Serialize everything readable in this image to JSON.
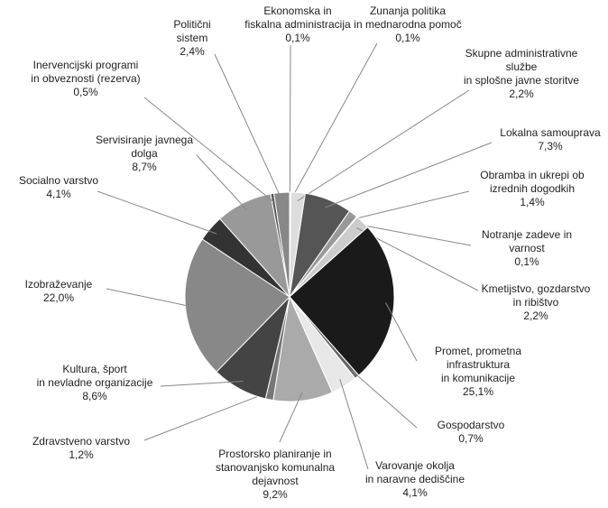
{
  "chart_data": {
    "type": "pie",
    "categories": [
      "Ekonomska in\nfiskalna administracija",
      "Zunanja politika\nin mednarodna pomoč",
      "Skupne administrativne\nslužbe\nin splošne javne storitve",
      "Lokalna samouprava",
      "Obramba in ukrepi ob\nizrednih dogodkih",
      "Notranje zadeve in\nvarnost",
      "Kmetijstvo, gozdarstvo\nin ribištvo",
      "Promet, prometna\ninfrastruktura\nin komunikacije",
      "Gospodarstvo",
      "Varovanje okolja\nin naravne dediščine",
      "Prostorsko planiranje in\nstanovanjsko komunalna\ndejavnost",
      "Zdravstveno varstvo",
      "Kultura, šport\nin nevladne organizacije",
      "Izobraževanje",
      "Socialno varstvo",
      "Servisiranje javnega\ndolga",
      "Inervencijski programi\nin obveznosti (rezerva)",
      "Politični\nsistem"
    ],
    "values": [
      0.1,
      0.1,
      2.2,
      7.3,
      1.4,
      0.1,
      2.2,
      25.1,
      0.7,
      4.1,
      9.2,
      1.2,
      8.6,
      22.0,
      4.1,
      8.7,
      0.5,
      2.4
    ],
    "value_labels": [
      "0,1%",
      "0,1%",
      "2,2%",
      "7,3%",
      "1,4%",
      "0,1%",
      "2,2%",
      "25,1%",
      "0,7%",
      "4,1%",
      "9,2%",
      "1,2%",
      "8,6%",
      "22,0%",
      "4,1%",
      "8,7%",
      "0,5%",
      "2,4%"
    ],
    "colors": [
      "#777777",
      "#cccccc",
      "#dddddd",
      "#555555",
      "#999999",
      "#444444",
      "#cccccc",
      "#1a1a1a",
      "#666666",
      "#e8e8e8",
      "#aaaaaa",
      "#777777",
      "#444444",
      "#888888",
      "#333333",
      "#999999",
      "#555555",
      "#888888"
    ]
  }
}
